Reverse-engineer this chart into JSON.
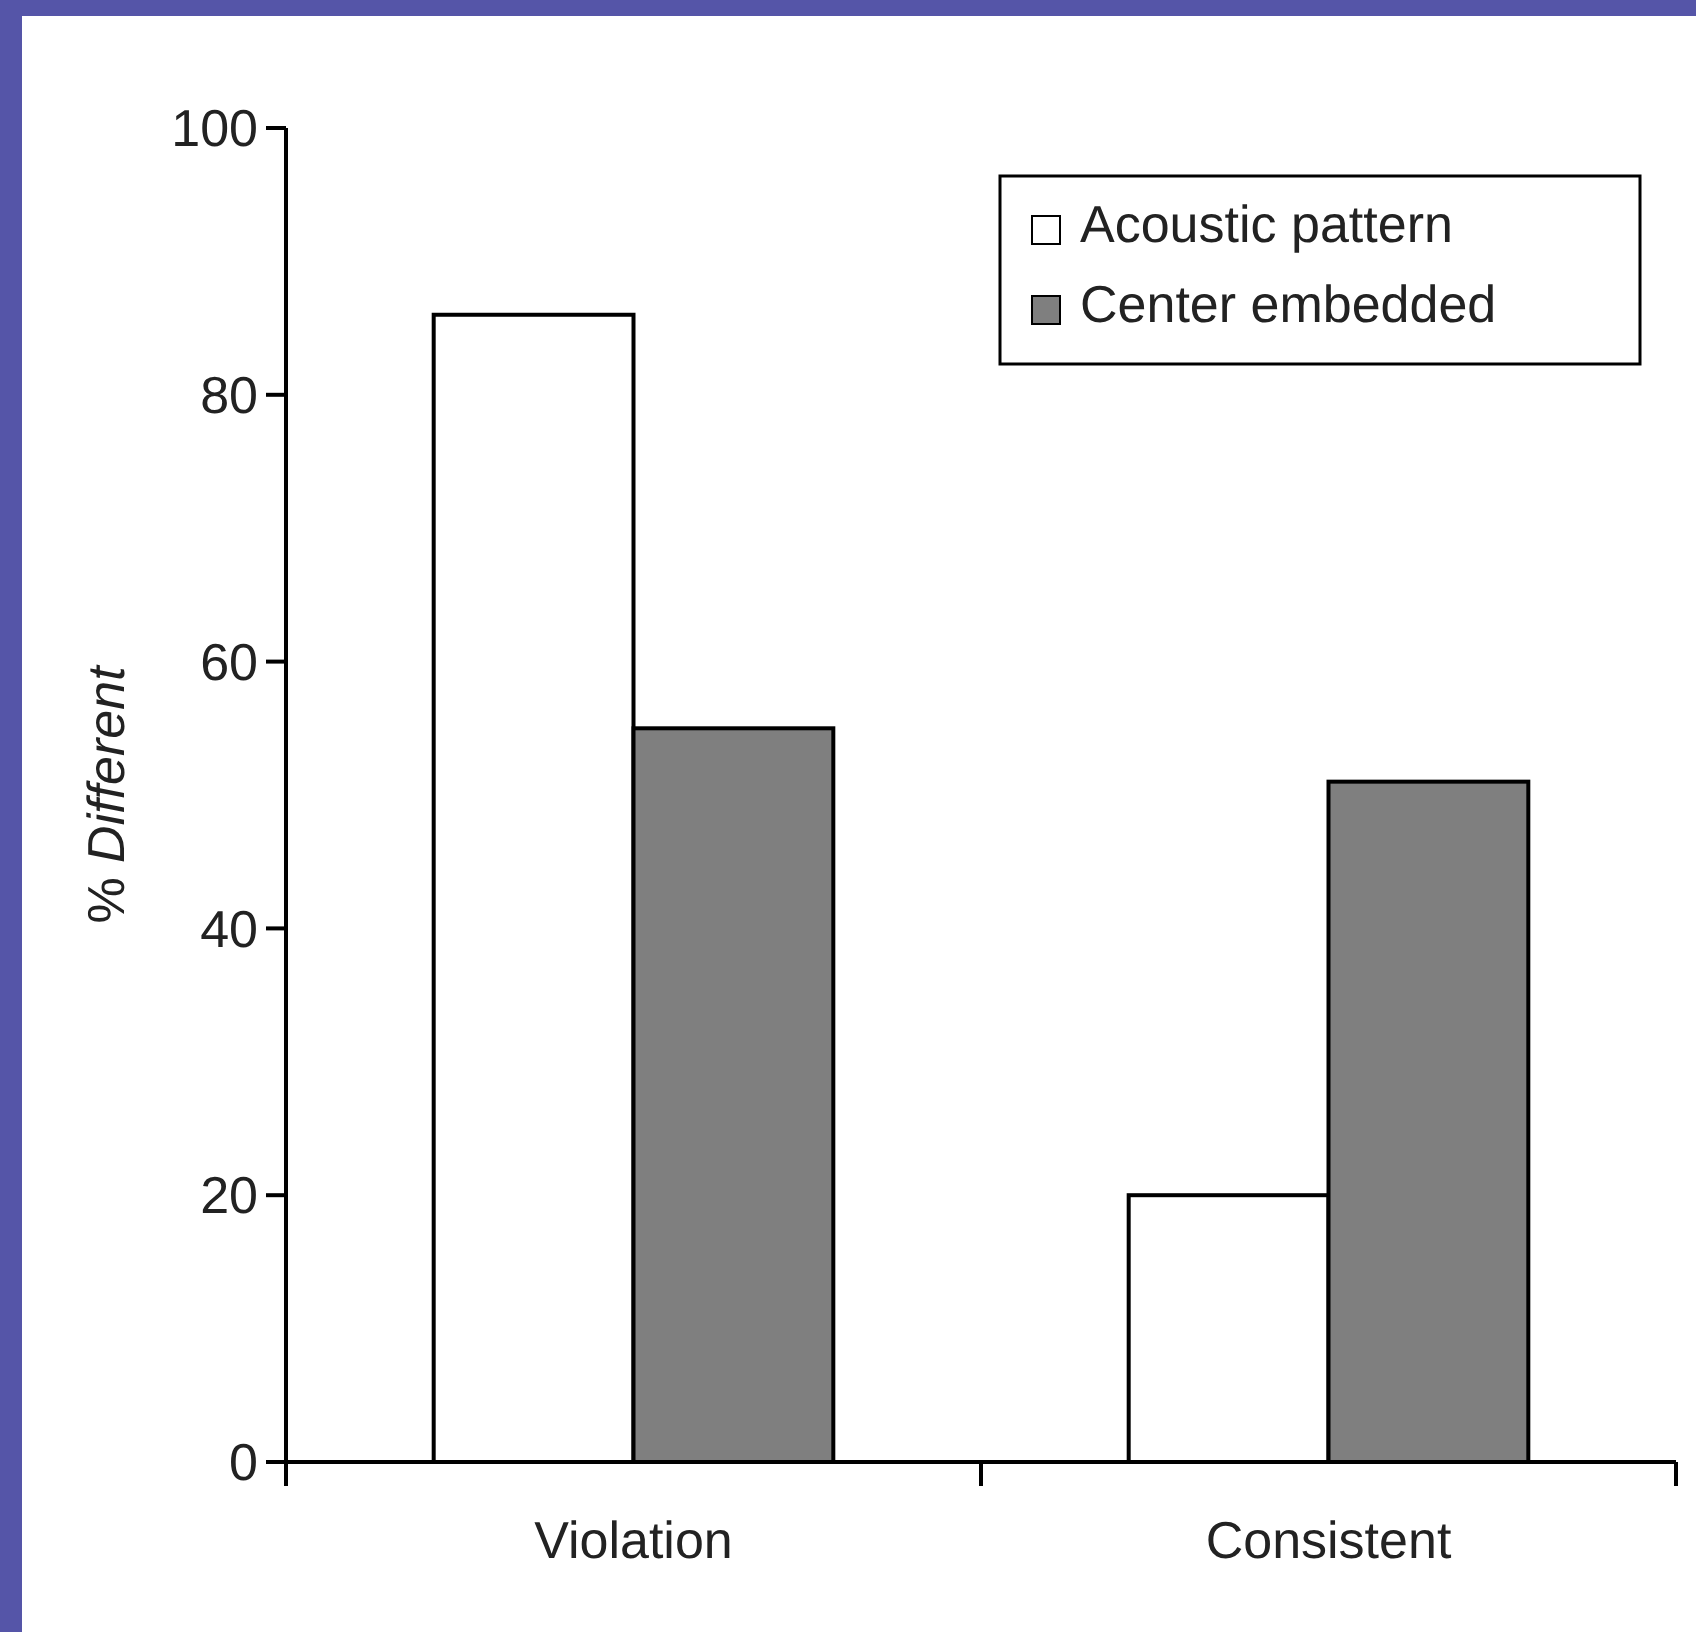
{
  "chart_data": {
    "type": "bar",
    "ylabel": "% Different",
    "categories": [
      "Violation",
      "Consistent"
    ],
    "series": [
      {
        "name": "Acoustic pattern",
        "color": "#ffffff",
        "values": [
          86,
          20
        ]
      },
      {
        "name": "Center embedded",
        "color": "#7f7f7f",
        "values": [
          55,
          51
        ]
      }
    ],
    "ylim": [
      0,
      100
    ],
    "yticks": [
      0,
      20,
      40,
      60,
      80,
      100
    ],
    "grid": false,
    "legend": "top right"
  }
}
